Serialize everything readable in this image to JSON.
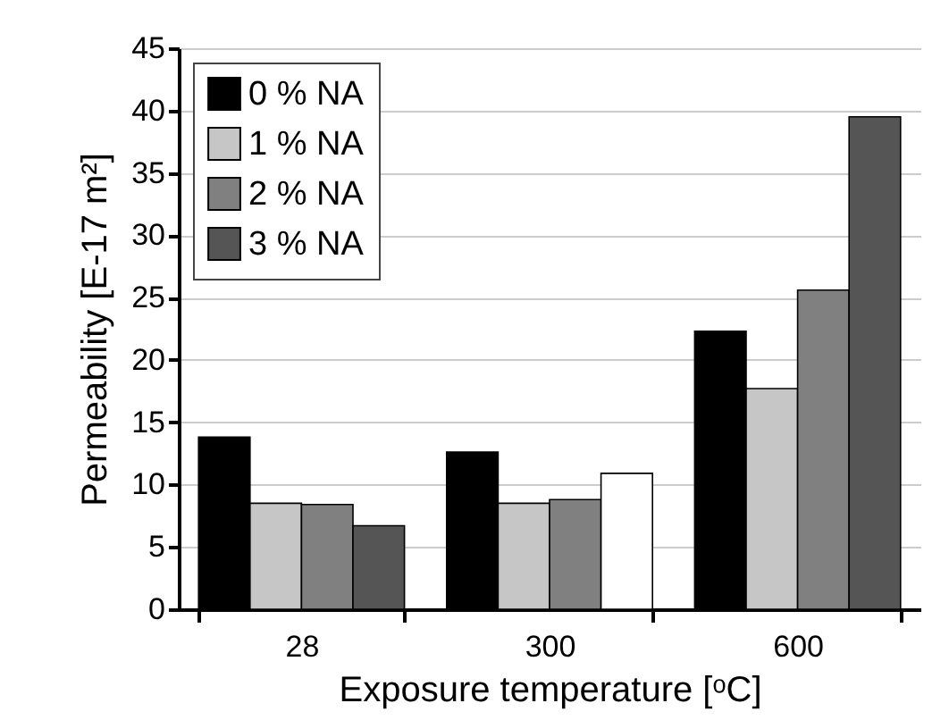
{
  "chart_data": {
    "type": "bar",
    "xlabel": "Exposure temperature [ᵒC]",
    "ylabel": "Permeability [E-17 m²]",
    "categories": [
      "28",
      "300",
      "600"
    ],
    "series": [
      {
        "name": "0 % NA",
        "color": "#000000",
        "values": [
          13.8,
          12.6,
          22.3
        ]
      },
      {
        "name": "1 % NA",
        "color": "#c6c6c6",
        "values": [
          8.5,
          8.5,
          17.7
        ]
      },
      {
        "name": "2 % NA",
        "color": "#808080",
        "values": [
          8.4,
          8.8,
          25.6
        ]
      },
      {
        "name": "3 % NA",
        "color": "#555555",
        "colors": [
          "#555555",
          "#ffffff",
          "#555555"
        ],
        "values": [
          6.7,
          10.9,
          39.5
        ]
      }
    ],
    "ylim": [
      0,
      45
    ],
    "yticks": [
      0,
      5,
      10,
      15,
      20,
      25,
      30,
      35,
      40,
      45
    ],
    "grid": "y",
    "legend": "top left"
  }
}
